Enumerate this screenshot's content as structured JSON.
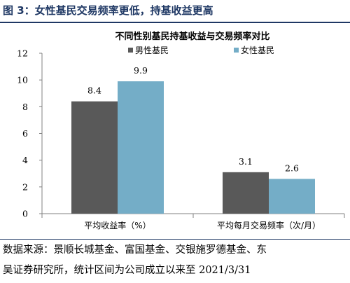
{
  "figure_title": "图 3：女性基民交易频率更低，持基收益更高",
  "source_lines": [
    "数据来源：景顺长城基金、富国基金、交银施罗德基金、东",
    "吴证券研究所，统计区间为公司成立以来至 2021/3/31"
  ],
  "chart_data": {
    "type": "bar",
    "title": "不同性别基民持基收益与交易频率对比",
    "categories": [
      "平均收益率（%）",
      "平均每月交易频率（次/月）"
    ],
    "series": [
      {
        "name": "男性基民",
        "values": [
          8.4,
          3.1
        ],
        "color": "#595959"
      },
      {
        "name": "女性基民",
        "values": [
          9.9,
          2.6
        ],
        "color": "#74adc7"
      }
    ],
    "ylim": [
      0,
      12
    ],
    "yticks": [
      0,
      2,
      4,
      6,
      8,
      10,
      12
    ],
    "grid": false,
    "legend": "top-center",
    "data_labels": true
  }
}
